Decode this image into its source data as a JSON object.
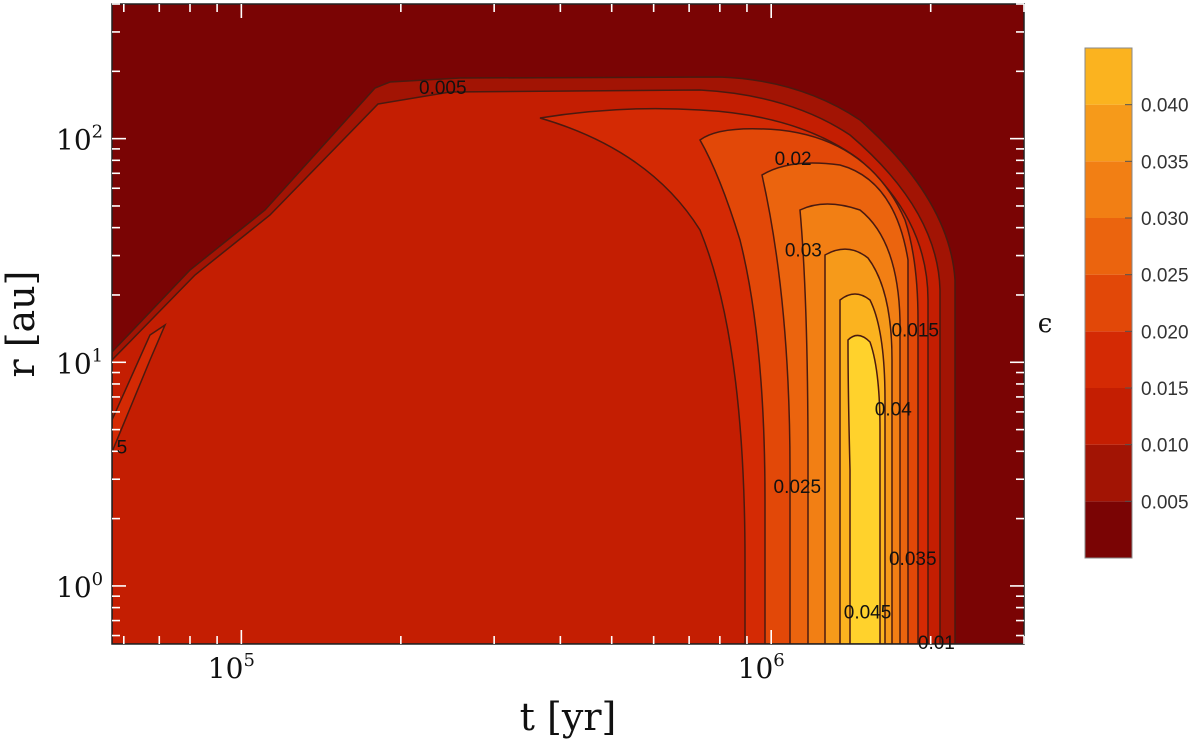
{
  "chart_data": {
    "type": "contour",
    "xlabel": "t [yr]",
    "ylabel": "r [au]",
    "x_scale": "log",
    "y_scale": "log",
    "xlim": [
      57000,
      3000000
    ],
    "ylim": [
      0.55,
      400
    ],
    "x_ticks": [
      {
        "value": 100000,
        "base": "10",
        "exp": "5"
      },
      {
        "value": 1000000,
        "base": "10",
        "exp": "6"
      }
    ],
    "y_ticks": [
      {
        "value": 1,
        "base": "10",
        "exp": "0"
      },
      {
        "value": 10,
        "base": "10",
        "exp": "1"
      },
      {
        "value": 100,
        "base": "10",
        "exp": "2"
      }
    ],
    "colorbar": {
      "title": "ϵ",
      "levels": [
        0,
        0.005,
        0.01,
        0.015,
        0.02,
        0.025,
        0.03,
        0.035,
        0.04,
        0.045
      ],
      "colors": [
        "#7a0404",
        "#a21404",
        "#c41e02",
        "#d42a04",
        "#e24808",
        "#eb640e",
        "#f27f14",
        "#f69a1a",
        "#fbb31f",
        "#ffd22c"
      ],
      "tick_labels": [
        "0.005",
        "0.010",
        "0.015",
        "0.020",
        "0.025",
        "0.030",
        "0.035",
        "0.040"
      ]
    },
    "contour_labels": [
      {
        "text": "0.005",
        "t": 240000,
        "r": 170
      },
      {
        "text": "0.02",
        "t": 1100000,
        "r": 82
      },
      {
        "text": "0.03",
        "t": 1150000,
        "r": 32
      },
      {
        "text": "0.015",
        "t": 1870000,
        "r": 14
      },
      {
        "text": "0.04",
        "t": 1700000,
        "r": 6.2
      },
      {
        "text": "0.025",
        "t": 1120000,
        "r": 2.8
      },
      {
        "text": "0.035",
        "t": 1850000,
        "r": 1.33
      },
      {
        "text": "0.045",
        "t": 1520000,
        "r": 0.77
      },
      {
        "text": "0.01",
        "t": 2050000,
        "r": 0.56
      },
      {
        "text": "5",
        "t": 59500,
        "r": 4.2
      }
    ]
  }
}
